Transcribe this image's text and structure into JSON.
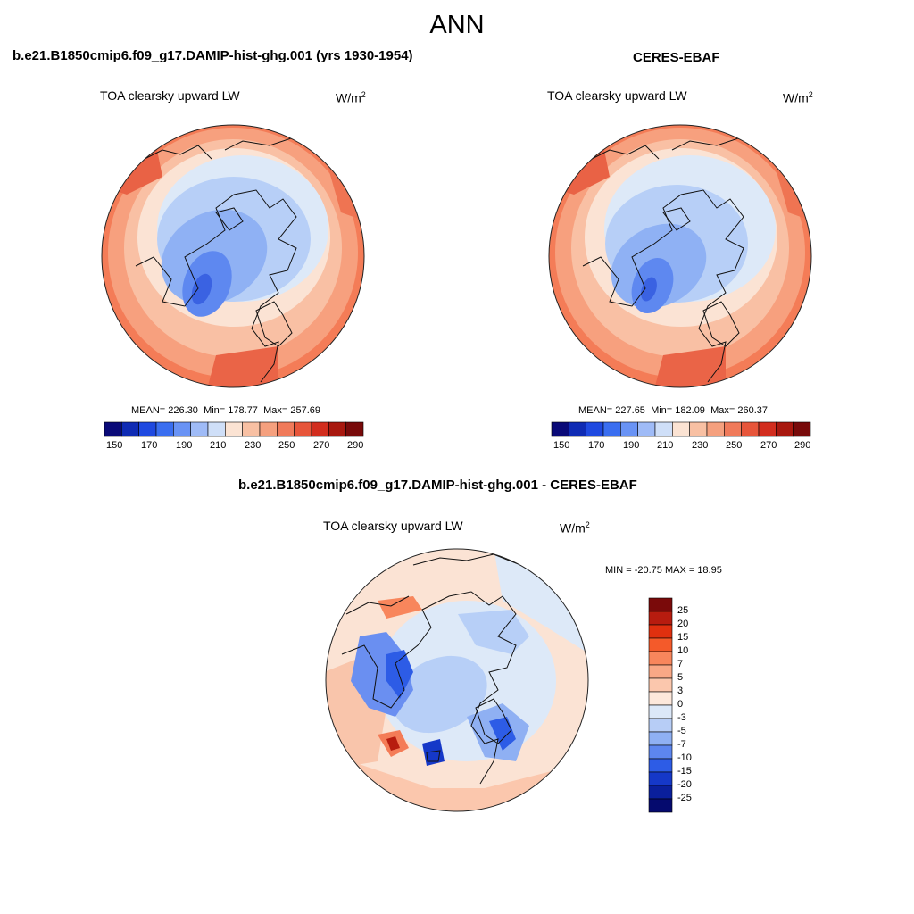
{
  "title": "ANN",
  "left_panel": {
    "header": "b.e21.B1850cmip6.f09_g17.DAMIP-hist-ghg.001 (yrs 1930-1954)",
    "variable": "TOA clearsky upward LW",
    "units": "W/m",
    "units_sup": "2",
    "mean_label": "MEAN=",
    "mean": "226.30",
    "min_label": "Min=",
    "min": "178.77",
    "max_label": "Max=",
    "max": "257.69"
  },
  "right_panel": {
    "header": "CERES-EBAF",
    "variable": "TOA clearsky upward LW",
    "units": "W/m",
    "units_sup": "2",
    "mean_label": "MEAN=",
    "mean": "227.65",
    "min_label": "Min=",
    "min": "182.09",
    "max_label": "Max=",
    "max": "260.37"
  },
  "diff_panel": {
    "header": "b.e21.B1850cmip6.f09_g17.DAMIP-hist-ghg.001 - CERES-EBAF",
    "variable": "TOA clearsky upward LW",
    "units": "W/m",
    "units_sup": "2",
    "minmax": "MIN = -20.75 MAX =  18.95"
  },
  "colorbar_horizontal": {
    "tick_labels": [
      "150",
      "170",
      "190",
      "210",
      "230",
      "250",
      "270",
      "290"
    ],
    "colors": [
      "#0a0a78",
      "#0f2bb4",
      "#1f49e0",
      "#3a6ef0",
      "#6993f5",
      "#9fbbf7",
      "#cfdff8",
      "#fbe3d3",
      "#f8c0a3",
      "#f5a07e",
      "#f07a5a",
      "#e7553a",
      "#d22d1e",
      "#a8180f",
      "#780a0a"
    ]
  },
  "colorbar_vertical": {
    "tick_labels": [
      "25",
      "20",
      "15",
      "10",
      "7",
      "5",
      "3",
      "0",
      "-3",
      "-5",
      "-7",
      "-10",
      "-15",
      "-20",
      "-25"
    ],
    "colors": [
      "#7a0a0a",
      "#b71c0f",
      "#e0300f",
      "#f45a2a",
      "#f8865c",
      "#f9a886",
      "#fbc7ad",
      "#fde8db",
      "#dce8f8",
      "#b7cdf6",
      "#8fb0f3",
      "#5d86ef",
      "#2d5ce6",
      "#1538c8",
      "#0a1f9c",
      "#050a6e"
    ]
  }
}
